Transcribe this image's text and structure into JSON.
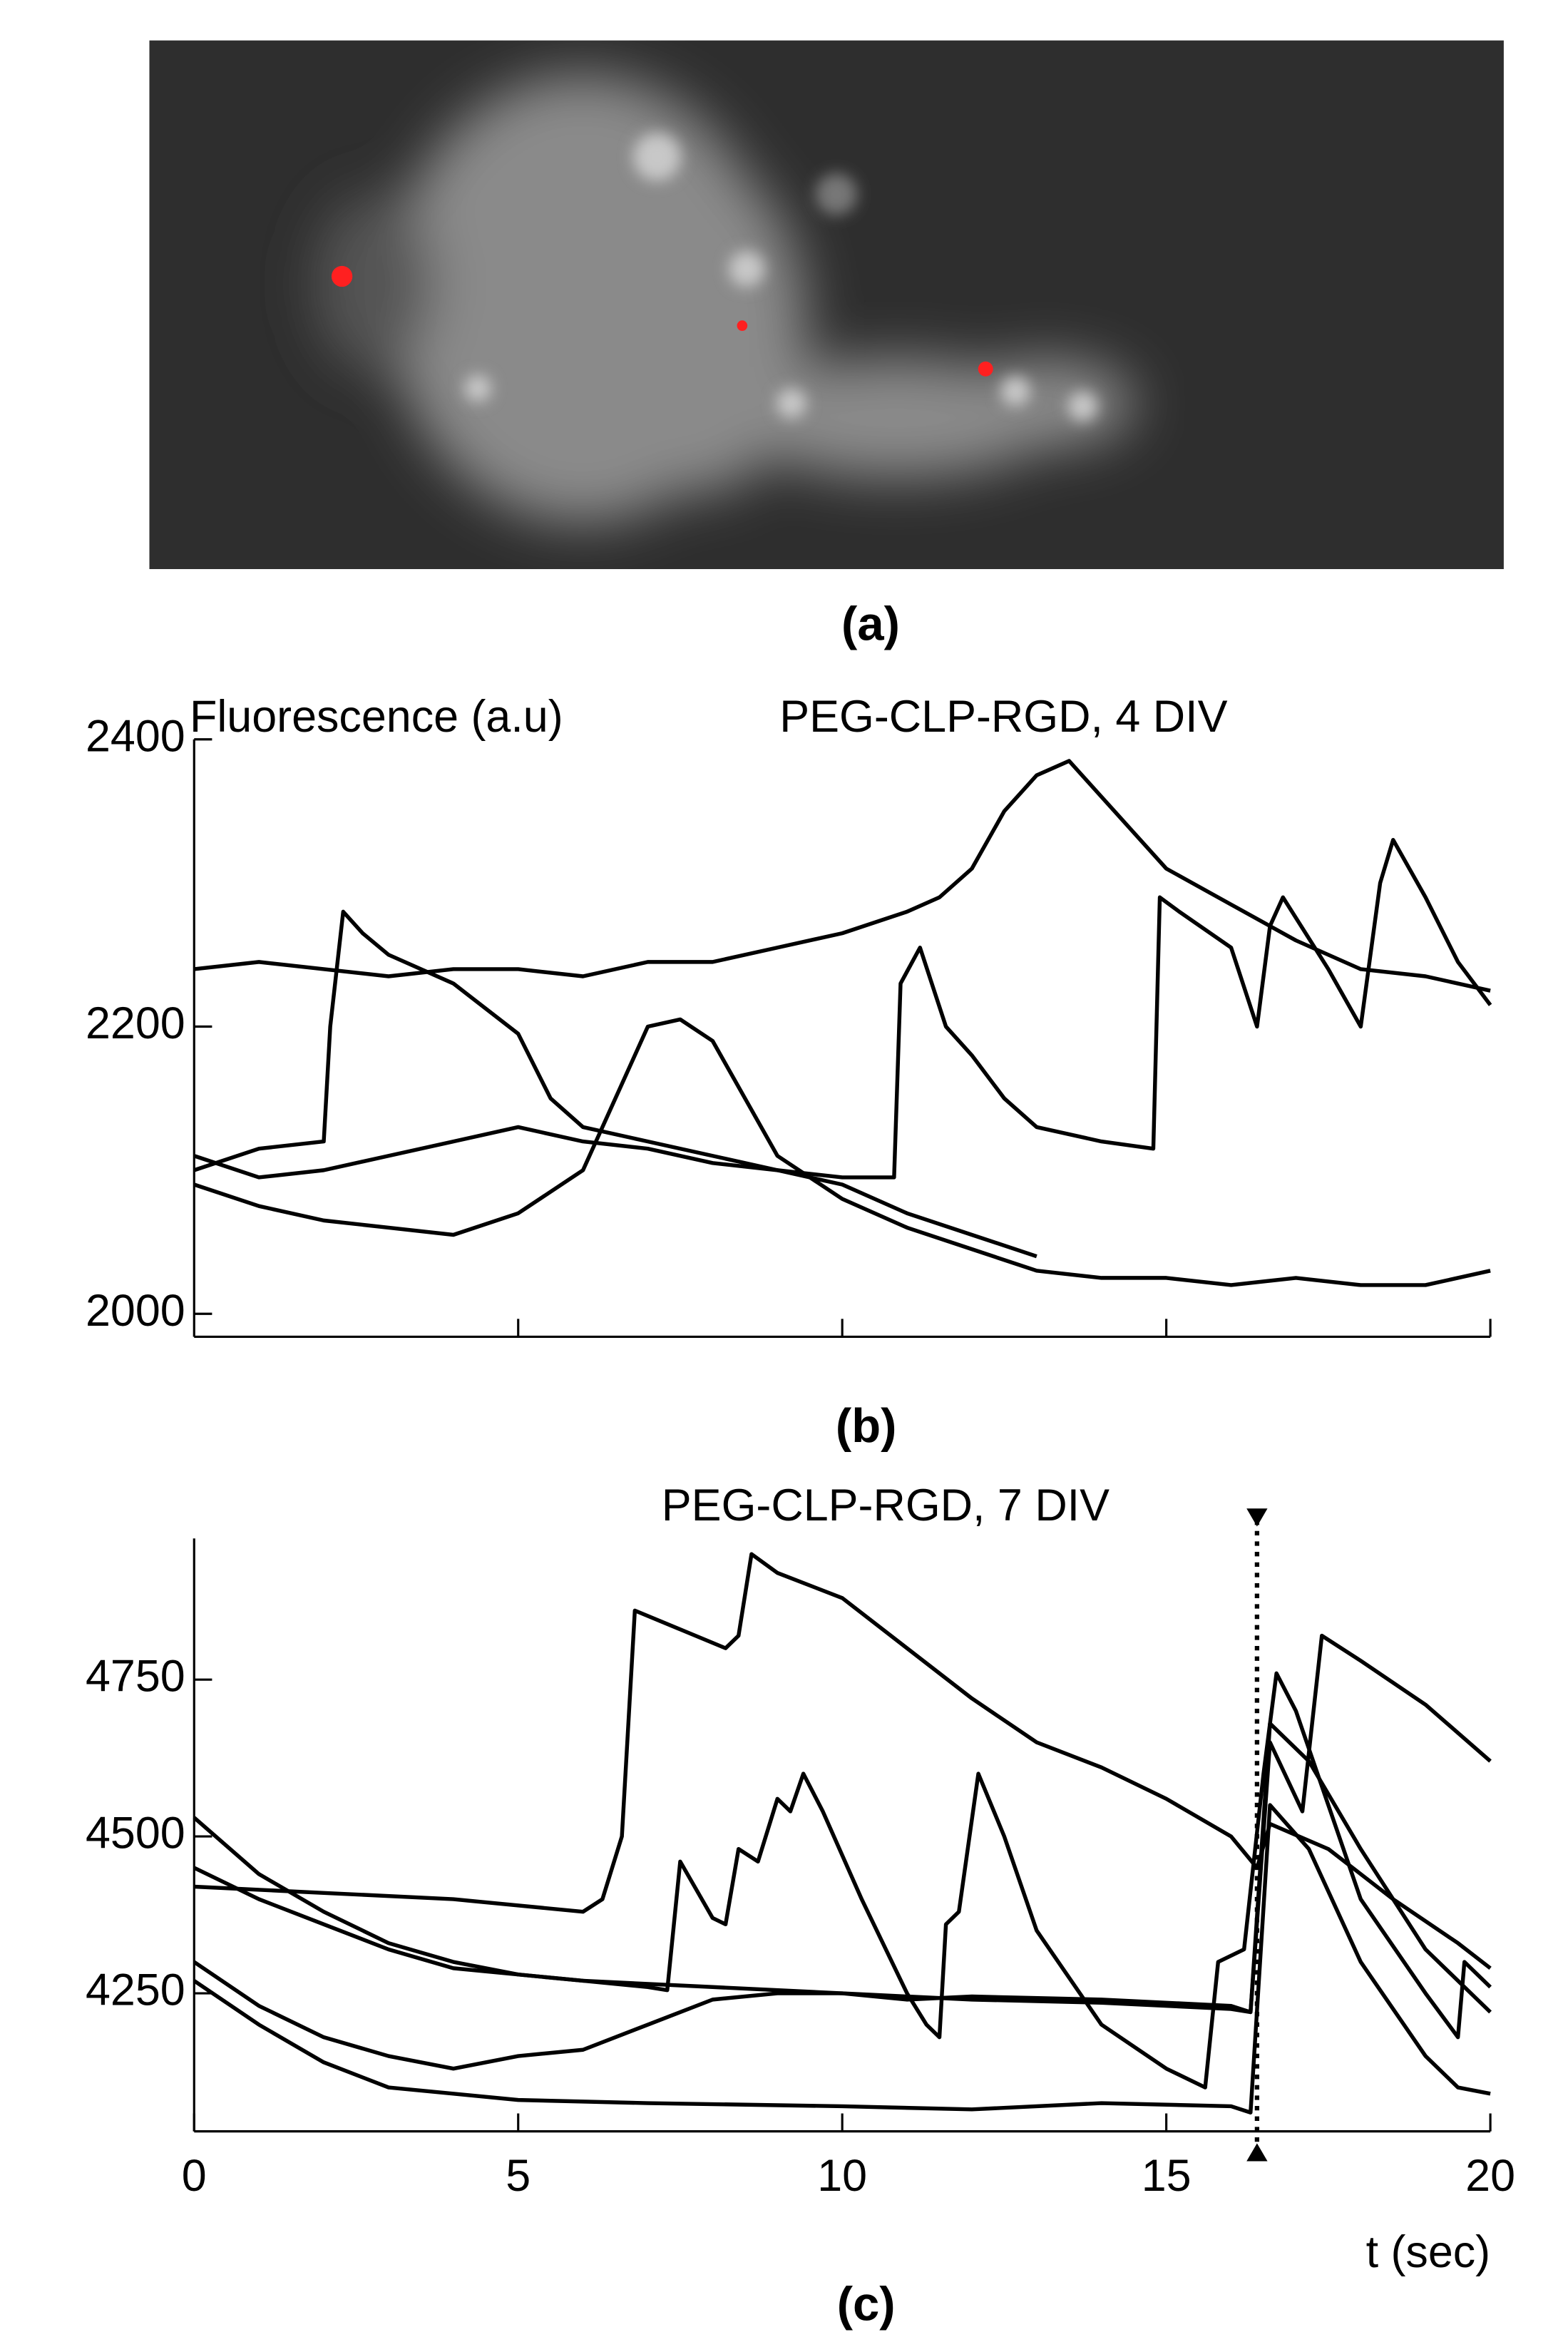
{
  "image": {
    "caption": "(a)"
  },
  "chart_data": [
    {
      "type": "line",
      "title": "PEG-CLP-RGD, 4 DIV",
      "ylabel": "Fluorescence (a.u)",
      "caption": "(b)",
      "xlim": [
        0,
        20
      ],
      "xticks": [
        5,
        10,
        15,
        20
      ],
      "xtick_labels": false,
      "ylim": [
        1984,
        2400
      ],
      "yticks": [
        2000,
        2200,
        2400
      ],
      "color": "#000000",
      "series": [
        {
          "x": [
            0,
            1,
            2,
            3,
            4,
            5,
            6,
            7,
            8,
            9,
            10,
            11,
            11.5,
            12,
            12.5,
            13,
            13.5,
            14,
            14.5,
            15,
            16,
            17,
            18,
            19,
            20
          ],
          "values": [
            2240,
            2245,
            2240,
            2235,
            2240,
            2240,
            2235,
            2245,
            2245,
            2255,
            2265,
            2280,
            2290,
            2310,
            2350,
            2375,
            2385,
            2360,
            2335,
            2310,
            2285,
            2260,
            2240,
            2235,
            2225
          ]
        },
        {
          "x": [
            0,
            1,
            2,
            2.1,
            2.3,
            2.6,
            3,
            4,
            5,
            5.5,
            6,
            7,
            8,
            9,
            10,
            10.8,
            10.9,
            11.2,
            11.6,
            12,
            12.5,
            13,
            14,
            14.8,
            14.9,
            15.2,
            16,
            16.4,
            16.6,
            16.8,
            17.5,
            18,
            18.3,
            18.5,
            19,
            19.5,
            20
          ],
          "values": [
            2100,
            2115,
            2120,
            2200,
            2280,
            2265,
            2250,
            2230,
            2195,
            2150,
            2130,
            2120,
            2110,
            2100,
            2095,
            2095,
            2230,
            2255,
            2200,
            2180,
            2150,
            2130,
            2120,
            2115,
            2290,
            2280,
            2255,
            2200,
            2270,
            2290,
            2240,
            2200,
            2300,
            2330,
            2290,
            2245,
            2215
          ]
        },
        {
          "x": [
            0,
            1,
            2,
            3,
            4,
            5,
            6,
            6.5,
            7,
            7.5,
            8,
            8.5,
            9,
            10,
            11,
            12,
            13,
            14,
            15,
            16,
            17,
            18,
            19,
            20
          ],
          "values": [
            2090,
            2075,
            2065,
            2060,
            2055,
            2070,
            2100,
            2150,
            2200,
            2205,
            2190,
            2150,
            2110,
            2080,
            2060,
            2045,
            2030,
            2025,
            2025,
            2020,
            2025,
            2020,
            2020,
            2030
          ]
        },
        {
          "x": [
            0,
            1,
            2,
            3,
            4,
            5,
            6,
            7,
            8,
            9,
            10,
            11,
            12,
            13
          ],
          "values": [
            2110,
            2095,
            2100,
            2110,
            2120,
            2130,
            2120,
            2115,
            2105,
            2100,
            2090,
            2070,
            2055,
            2040
          ]
        }
      ]
    },
    {
      "type": "line",
      "title": "PEG-CLP-RGD, 7 DIV",
      "xlabel": "t (sec)",
      "caption": "(c)",
      "xlim": [
        0,
        20
      ],
      "xticks": [
        0,
        5,
        10,
        15,
        20
      ],
      "xtick_labels": true,
      "ylim": [
        4030,
        4975
      ],
      "yticks": [
        4250,
        4500,
        4750
      ],
      "color": "#000000",
      "vline": 16.4,
      "series": [
        {
          "x": [
            0,
            2,
            4,
            6,
            6.3,
            6.6,
            6.8,
            7.5,
            8.2,
            8.4,
            8.6,
            9,
            10,
            11,
            12,
            13,
            14,
            15,
            16,
            16.4,
            16.6,
            17.5,
            18.5,
            19.5,
            20
          ],
          "values": [
            4420,
            4410,
            4400,
            4380,
            4400,
            4500,
            4860,
            4830,
            4800,
            4820,
            4950,
            4920,
            4880,
            4800,
            4720,
            4650,
            4610,
            4560,
            4500,
            4450,
            4520,
            4480,
            4400,
            4330,
            4290
          ]
        },
        {
          "x": [
            0,
            1,
            2,
            3,
            4,
            5,
            6,
            7,
            7.3,
            7.5,
            8,
            8.2,
            8.4,
            8.7,
            9,
            9.2,
            9.4,
            9.7,
            10.3,
            11,
            11.3,
            11.5,
            11.6,
            11.8,
            12.1,
            12.5,
            13,
            14,
            15,
            15.6,
            15.8,
            16.2,
            16.5,
            16.7,
            17,
            17.5,
            18,
            19,
            19.5,
            19.6,
            20
          ],
          "values": [
            4530,
            4440,
            4380,
            4330,
            4300,
            4280,
            4270,
            4260,
            4255,
            4460,
            4370,
            4360,
            4480,
            4460,
            4560,
            4540,
            4600,
            4540,
            4400,
            4250,
            4200,
            4180,
            4360,
            4380,
            4600,
            4500,
            4350,
            4200,
            4130,
            4100,
            4300,
            4320,
            4600,
            4760,
            4700,
            4550,
            4400,
            4250,
            4180,
            4300,
            4260
          ]
        },
        {
          "x": [
            0,
            1,
            2,
            3,
            4,
            6,
            8,
            10,
            12,
            14,
            16,
            16.3,
            16.6,
            17.1,
            17.4,
            18,
            19,
            20
          ],
          "values": [
            4450,
            4400,
            4360,
            4320,
            4290,
            4270,
            4260,
            4250,
            4240,
            4235,
            4225,
            4220,
            4650,
            4540,
            4820,
            4780,
            4710,
            4620
          ]
        },
        {
          "x": [
            0,
            1,
            2,
            3,
            4,
            5,
            6,
            7,
            8,
            9,
            10,
            11,
            12,
            14,
            16,
            16.3,
            16.6,
            17.2,
            18,
            19,
            20
          ],
          "values": [
            4300,
            4230,
            4180,
            4150,
            4130,
            4150,
            4160,
            4200,
            4240,
            4250,
            4250,
            4240,
            4245,
            4240,
            4230,
            4220,
            4680,
            4620,
            4480,
            4320,
            4220
          ]
        },
        {
          "x": [
            0,
            1,
            2,
            3,
            4,
            5,
            7,
            10,
            12,
            14,
            16,
            16.3,
            16.6,
            17.2,
            18,
            19,
            19.5,
            20
          ],
          "values": [
            4270,
            4200,
            4140,
            4100,
            4090,
            4080,
            4075,
            4070,
            4065,
            4075,
            4070,
            4060,
            4550,
            4480,
            4300,
            4150,
            4100,
            4090
          ]
        }
      ]
    }
  ]
}
